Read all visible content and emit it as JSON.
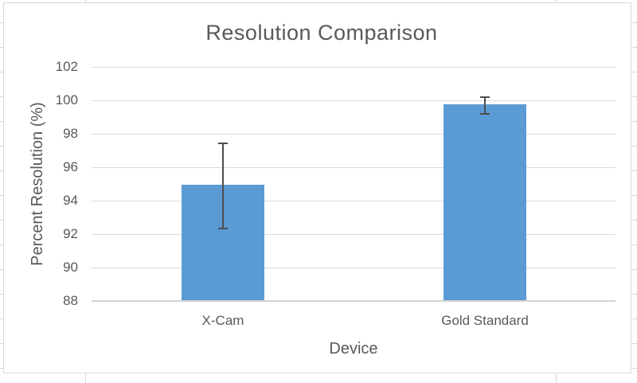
{
  "chart_data": {
    "type": "bar",
    "title": "Resolution Comparison",
    "xlabel": "Device",
    "ylabel": "Percent Resolution (%)",
    "categories": [
      "X-Cam",
      "Gold Standard"
    ],
    "values": [
      94.95,
      99.75
    ],
    "error_bars": [
      2.55,
      0.5
    ],
    "ylim": [
      88,
      102
    ],
    "yticks": [
      88,
      90,
      92,
      94,
      96,
      98,
      100,
      102
    ],
    "grid": true,
    "legend_position": "none",
    "bar_color": "#5b9bd5",
    "error_bar_color": "#4d4d4d",
    "gridline_color": "#d9d9d9",
    "axis_line_color": "#d2d2d2",
    "text_color": "#595959",
    "chart_background": "#ffffff"
  }
}
